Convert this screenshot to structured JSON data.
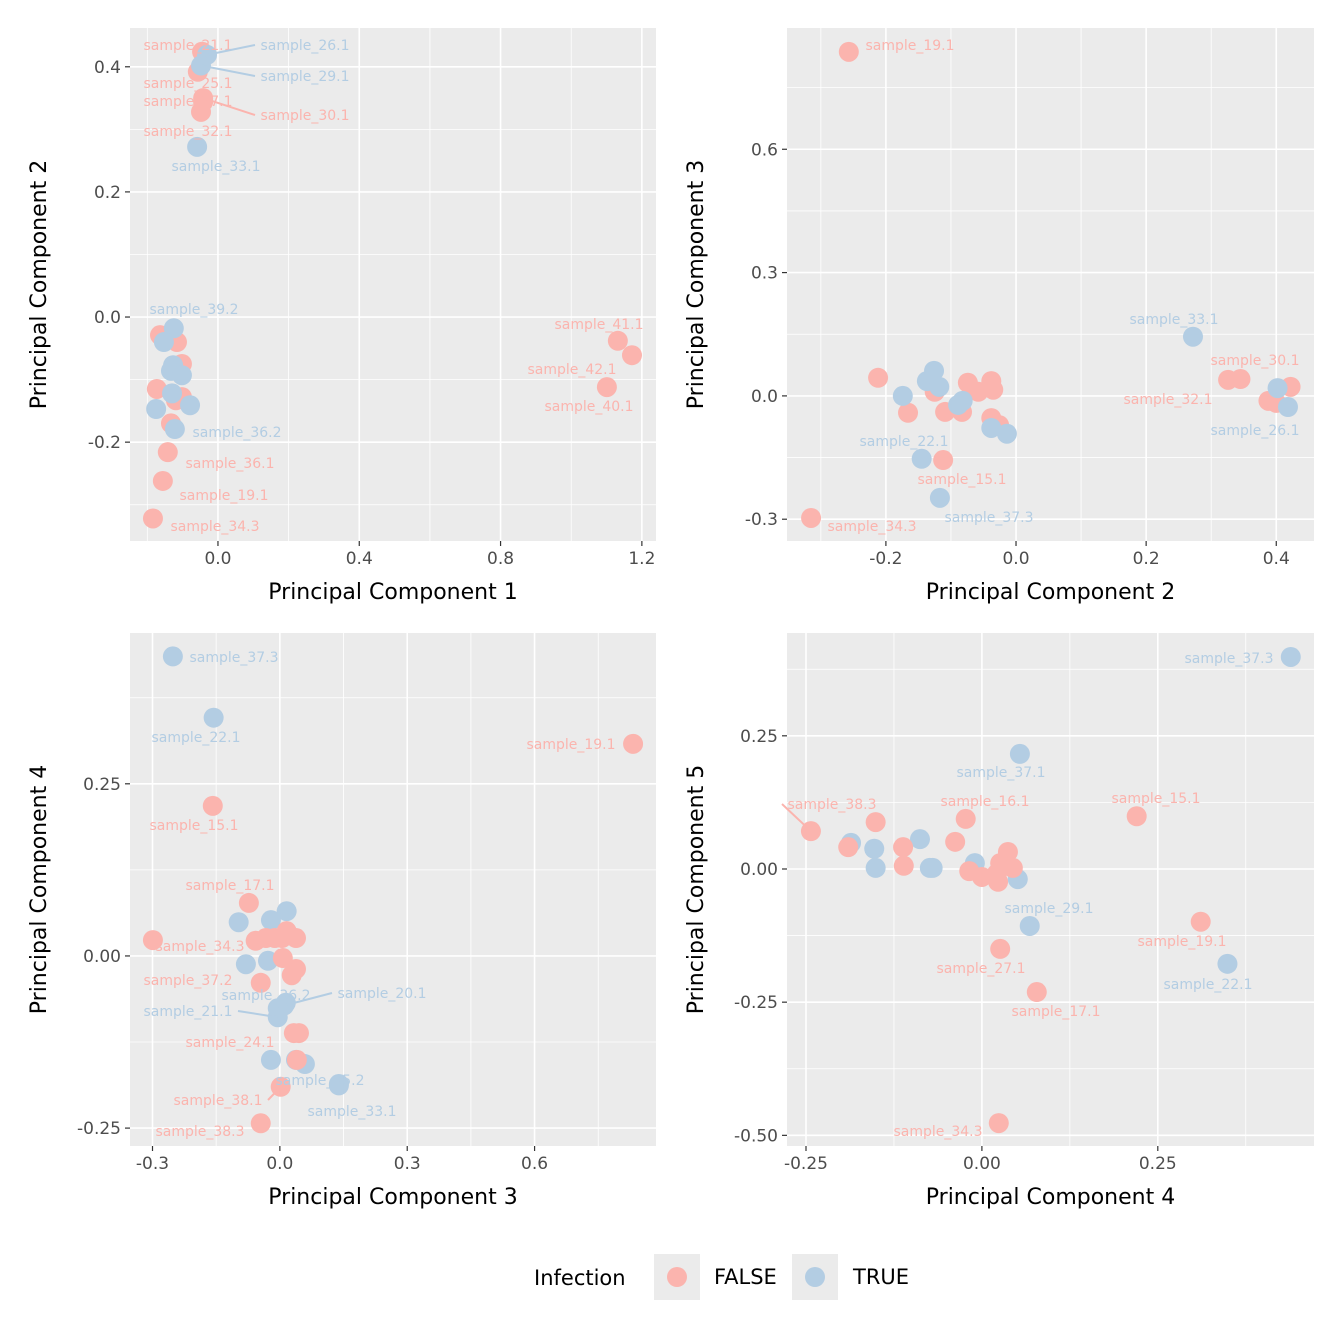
{
  "colors": {
    "FALSE": "#FBB4AE",
    "TRUE": "#B3CDE3"
  },
  "legend": {
    "title": "Infection",
    "items": [
      {
        "key": "FALSE",
        "label": "FALSE"
      },
      {
        "key": "TRUE",
        "label": "TRUE"
      }
    ]
  },
  "chart_data": [
    {
      "type": "scatter",
      "xlabel": "Principal Component 1",
      "ylabel": "Principal Component 2",
      "xlim": [
        -0.249,
        1.24
      ],
      "ylim": [
        -0.358,
        0.462
      ],
      "xticks": [
        0,
        0.4,
        0.8,
        1.2
      ],
      "xtick_labels": [
        "0.0",
        "0.4",
        "0.8",
        "1.2"
      ],
      "yticks": [
        -0.2,
        0,
        0.2,
        0.4
      ],
      "ytick_labels": [
        "-0.2",
        "0.0",
        "0.2",
        "0.4"
      ],
      "xminor": [
        -0.2,
        0.2,
        0.6,
        1.0
      ],
      "yminor": [
        -0.3,
        -0.1,
        0.1,
        0.3
      ],
      "points": [
        {
          "x": -0.045,
          "y": 0.424,
          "g": "FALSE",
          "label": "sample_21.1"
        },
        {
          "x": -0.057,
          "y": 0.392,
          "g": "FALSE",
          "label": "sample_25.1"
        },
        {
          "x": -0.042,
          "y": 0.344,
          "g": "FALSE",
          "label": "sample_27.1"
        },
        {
          "x": -0.042,
          "y": 0.35,
          "g": "FALSE",
          "label": "sample_30.1"
        },
        {
          "x": -0.048,
          "y": 0.328,
          "g": "FALSE",
          "label": "sample_32.1"
        },
        {
          "x": -0.164,
          "y": -0.029,
          "g": "FALSE"
        },
        {
          "x": -0.116,
          "y": -0.04,
          "g": "FALSE"
        },
        {
          "x": -0.102,
          "y": -0.075,
          "g": "FALSE"
        },
        {
          "x": -0.173,
          "y": -0.115,
          "g": "FALSE"
        },
        {
          "x": -0.102,
          "y": -0.128,
          "g": "FALSE"
        },
        {
          "x": -0.119,
          "y": -0.133,
          "g": "FALSE"
        },
        {
          "x": -0.133,
          "y": -0.17,
          "g": "FALSE"
        },
        {
          "x": -0.142,
          "y": -0.216,
          "g": "FALSE",
          "label": "sample_36.1"
        },
        {
          "x": -0.156,
          "y": -0.262,
          "g": "FALSE",
          "label": "sample_19.1"
        },
        {
          "x": -0.184,
          "y": -0.322,
          "g": "FALSE",
          "label": "sample_34.3"
        },
        {
          "x": 1.132,
          "y": -0.038,
          "g": "FALSE",
          "label": "sample_41.1"
        },
        {
          "x": 1.172,
          "y": -0.061,
          "g": "FALSE",
          "label": "sample_42.1"
        },
        {
          "x": 1.101,
          "y": -0.112,
          "g": "FALSE",
          "label": "sample_40.1"
        },
        {
          "x": -0.031,
          "y": 0.419,
          "g": "TRUE",
          "label": "sample_26.1"
        },
        {
          "x": -0.048,
          "y": 0.402,
          "g": "TRUE",
          "label": "sample_29.1"
        },
        {
          "x": -0.059,
          "y": 0.272,
          "g": "TRUE",
          "label": "sample_33.1"
        },
        {
          "x": -0.125,
          "y": -0.018,
          "g": "TRUE",
          "label": "sample_39.2"
        },
        {
          "x": -0.153,
          "y": -0.04,
          "g": "TRUE"
        },
        {
          "x": -0.127,
          "y": -0.077,
          "g": "TRUE"
        },
        {
          "x": -0.133,
          "y": -0.086,
          "g": "TRUE"
        },
        {
          "x": -0.102,
          "y": -0.093,
          "g": "TRUE"
        },
        {
          "x": -0.13,
          "y": -0.122,
          "g": "TRUE"
        },
        {
          "x": -0.079,
          "y": -0.141,
          "g": "TRUE"
        },
        {
          "x": -0.175,
          "y": -0.147,
          "g": "TRUE"
        },
        {
          "x": -0.122,
          "y": -0.179,
          "g": "TRUE",
          "label": "sample_36.2"
        }
      ]
    },
    {
      "type": "scatter",
      "xlabel": "Principal Component 2",
      "ylabel": "Principal Component 3",
      "xlim": [
        -0.352,
        0.458
      ],
      "ylim": [
        -0.353,
        0.895
      ],
      "xticks": [
        -0.2,
        0,
        0.2,
        0.4
      ],
      "xtick_labels": [
        "-0.2",
        "0.0",
        "0.2",
        "0.4"
      ],
      "yticks": [
        -0.3,
        0,
        0.3,
        0.6
      ],
      "ytick_labels": [
        "-0.3",
        "0.0",
        "0.3",
        "0.6"
      ],
      "xminor": [
        -0.3,
        -0.1,
        0.1,
        0.3
      ],
      "yminor": [
        -0.15,
        0.15,
        0.45,
        0.75
      ],
      "points": [
        {
          "x": -0.257,
          "y": 0.837,
          "g": "FALSE",
          "label": "sample_19.1"
        },
        {
          "x": -0.212,
          "y": 0.044,
          "g": "FALSE"
        },
        {
          "x": -0.166,
          "y": -0.041,
          "g": "FALSE"
        },
        {
          "x": -0.125,
          "y": 0.01,
          "g": "FALSE"
        },
        {
          "x": -0.109,
          "y": -0.039,
          "g": "FALSE"
        },
        {
          "x": -0.112,
          "y": -0.156,
          "g": "FALSE",
          "label": "sample_15.1"
        },
        {
          "x": -0.074,
          "y": 0.032,
          "g": "FALSE"
        },
        {
          "x": -0.083,
          "y": -0.039,
          "g": "FALSE"
        },
        {
          "x": -0.058,
          "y": 0.01,
          "g": "FALSE"
        },
        {
          "x": -0.038,
          "y": 0.036,
          "g": "FALSE"
        },
        {
          "x": -0.035,
          "y": 0.015,
          "g": "FALSE"
        },
        {
          "x": -0.038,
          "y": -0.054,
          "g": "FALSE"
        },
        {
          "x": -0.026,
          "y": -0.071,
          "g": "FALSE"
        },
        {
          "x": -0.315,
          "y": -0.297,
          "g": "FALSE",
          "label": "sample_34.3"
        },
        {
          "x": 0.326,
          "y": 0.039,
          "g": "FALSE",
          "label": "sample_32.1"
        },
        {
          "x": 0.345,
          "y": 0.041,
          "g": "FALSE",
          "label": "sample_30.1"
        },
        {
          "x": 0.388,
          "y": -0.012,
          "g": "FALSE"
        },
        {
          "x": 0.422,
          "y": 0.022,
          "g": "FALSE"
        },
        {
          "x": 0.4,
          "y": -0.017,
          "g": "FALSE"
        },
        {
          "x": -0.174,
          "y": 0.0,
          "g": "TRUE"
        },
        {
          "x": -0.137,
          "y": 0.036,
          "g": "TRUE"
        },
        {
          "x": -0.126,
          "y": 0.061,
          "g": "TRUE"
        },
        {
          "x": -0.118,
          "y": 0.022,
          "g": "TRUE"
        },
        {
          "x": -0.145,
          "y": -0.153,
          "g": "TRUE",
          "label": "sample_22.1"
        },
        {
          "x": -0.117,
          "y": -0.248,
          "g": "TRUE",
          "label": "sample_37.3"
        },
        {
          "x": -0.089,
          "y": -0.022,
          "g": "TRUE"
        },
        {
          "x": -0.082,
          "y": -0.012,
          "g": "TRUE"
        },
        {
          "x": -0.038,
          "y": -0.078,
          "g": "TRUE"
        },
        {
          "x": -0.014,
          "y": -0.092,
          "g": "TRUE"
        },
        {
          "x": 0.272,
          "y": 0.144,
          "g": "TRUE",
          "label": "sample_33.1"
        },
        {
          "x": 0.402,
          "y": 0.019,
          "g": "TRUE"
        },
        {
          "x": 0.418,
          "y": -0.027,
          "g": "TRUE",
          "label": "sample_26.1"
        }
      ]
    },
    {
      "type": "scatter",
      "xlabel": "Principal Component 3",
      "ylabel": "Principal Component 4",
      "xlim": [
        -0.353,
        0.886
      ],
      "ylim": [
        -0.276,
        0.469
      ],
      "xticks": [
        -0.3,
        0,
        0.3,
        0.6
      ],
      "xtick_labels": [
        "-0.3",
        "0.0",
        "0.3",
        "0.6"
      ],
      "yticks": [
        -0.25,
        0,
        0.25
      ],
      "ytick_labels": [
        "-0.25",
        "0.00",
        "0.25"
      ],
      "xminor": [
        -0.15,
        0.15,
        0.45,
        0.75
      ],
      "yminor": [
        -0.125,
        0.125,
        0.375
      ],
      "points": [
        {
          "x": -0.252,
          "y": 0.435,
          "g": "TRUE",
          "label": "sample_37.3"
        },
        {
          "x": -0.156,
          "y": 0.346,
          "g": "TRUE",
          "label": "sample_22.1"
        },
        {
          "x": -0.097,
          "y": 0.049,
          "g": "TRUE"
        },
        {
          "x": -0.021,
          "y": 0.052,
          "g": "TRUE"
        },
        {
          "x": 0.016,
          "y": 0.065,
          "g": "TRUE"
        },
        {
          "x": -0.08,
          "y": -0.012,
          "g": "TRUE"
        },
        {
          "x": -0.028,
          "y": -0.007,
          "g": "TRUE"
        },
        {
          "x": 0.014,
          "y": -0.068,
          "g": "TRUE",
          "label": "sample_36.2"
        },
        {
          "x": 0.01,
          "y": -0.072,
          "g": "TRUE",
          "label": "sample_20.1"
        },
        {
          "x": -0.005,
          "y": -0.076,
          "g": "TRUE"
        },
        {
          "x": -0.005,
          "y": -0.089,
          "g": "TRUE",
          "label": "sample_21.1"
        },
        {
          "x": -0.021,
          "y": -0.151,
          "g": "TRUE"
        },
        {
          "x": 0.038,
          "y": -0.151,
          "g": "TRUE"
        },
        {
          "x": 0.059,
          "y": -0.157,
          "g": "TRUE"
        },
        {
          "x": 0.139,
          "y": -0.186,
          "g": "TRUE",
          "label": "sample_35.2"
        },
        {
          "x": 0.139,
          "y": -0.188,
          "g": "TRUE",
          "label": "sample_33.1"
        },
        {
          "x": 0.832,
          "y": 0.308,
          "g": "FALSE",
          "label": "sample_19.1"
        },
        {
          "x": -0.158,
          "y": 0.218,
          "g": "FALSE",
          "label": "sample_15.1"
        },
        {
          "x": -0.073,
          "y": 0.077,
          "g": "FALSE",
          "label": "sample_17.1"
        },
        {
          "x": -0.299,
          "y": 0.023,
          "g": "FALSE",
          "label": "sample_34.3"
        },
        {
          "x": -0.057,
          "y": 0.022,
          "g": "FALSE"
        },
        {
          "x": -0.033,
          "y": 0.026,
          "g": "FALSE"
        },
        {
          "x": -0.012,
          "y": 0.026,
          "g": "FALSE"
        },
        {
          "x": 0.016,
          "y": 0.036,
          "g": "FALSE"
        },
        {
          "x": 0.038,
          "y": 0.026,
          "g": "FALSE"
        },
        {
          "x": 0.005,
          "y": 0.026,
          "g": "FALSE"
        },
        {
          "x": 0.007,
          "y": -0.003,
          "g": "FALSE"
        },
        {
          "x": 0.038,
          "y": -0.019,
          "g": "FALSE"
        },
        {
          "x": 0.028,
          "y": -0.028,
          "g": "FALSE"
        },
        {
          "x": -0.045,
          "y": -0.039,
          "g": "FALSE",
          "label": "sample_37.2"
        },
        {
          "x": 0.033,
          "y": -0.112,
          "g": "FALSE",
          "label": "sample_24.1"
        },
        {
          "x": 0.045,
          "y": -0.112,
          "g": "FALSE"
        },
        {
          "x": 0.04,
          "y": -0.151,
          "g": "FALSE"
        },
        {
          "x": 0.002,
          "y": -0.19,
          "g": "FALSE",
          "label": "sample_38.1"
        },
        {
          "x": -0.045,
          "y": -0.243,
          "g": "FALSE",
          "label": "sample_38.3"
        }
      ]
    },
    {
      "type": "scatter",
      "xlabel": "Principal Component 4",
      "ylabel": "Principal Component 5",
      "xlim": [
        -0.277,
        0.472
      ],
      "ylim": [
        -0.52,
        0.443
      ],
      "xticks": [
        -0.25,
        0,
        0.25
      ],
      "xtick_labels": [
        "-0.25",
        "0.00",
        "0.25"
      ],
      "yticks": [
        -0.5,
        -0.25,
        0,
        0.25
      ],
      "ytick_labels": [
        "-0.50",
        "-0.25",
        "0.00",
        "0.25"
      ],
      "xminor": [
        -0.125,
        0.125,
        0.375
      ],
      "yminor": [
        -0.375,
        -0.125,
        0.125,
        0.375
      ],
      "points": [
        {
          "x": 0.439,
          "y": 0.398,
          "g": "TRUE",
          "label": "sample_37.3"
        },
        {
          "x": 0.054,
          "y": 0.216,
          "g": "TRUE",
          "label": "sample_37.1"
        },
        {
          "x": -0.186,
          "y": 0.049,
          "g": "TRUE"
        },
        {
          "x": -0.153,
          "y": 0.038,
          "g": "TRUE"
        },
        {
          "x": -0.151,
          "y": 0.002,
          "g": "TRUE"
        },
        {
          "x": -0.088,
          "y": 0.056,
          "g": "TRUE"
        },
        {
          "x": -0.074,
          "y": 0.002,
          "g": "TRUE"
        },
        {
          "x": -0.07,
          "y": 0.002,
          "g": "TRUE"
        },
        {
          "x": -0.01,
          "y": 0.011,
          "g": "TRUE"
        },
        {
          "x": 0.051,
          "y": -0.019,
          "g": "TRUE"
        },
        {
          "x": 0.068,
          "y": -0.107,
          "g": "TRUE",
          "label": "sample_29.1"
        },
        {
          "x": 0.349,
          "y": -0.178,
          "g": "TRUE",
          "label": "sample_22.1"
        },
        {
          "x": -0.243,
          "y": 0.071,
          "g": "FALSE",
          "label": "sample_38.3"
        },
        {
          "x": -0.19,
          "y": 0.041,
          "g": "FALSE"
        },
        {
          "x": -0.151,
          "y": 0.088,
          "g": "FALSE"
        },
        {
          "x": -0.112,
          "y": 0.041,
          "g": "FALSE"
        },
        {
          "x": -0.111,
          "y": 0.006,
          "g": "FALSE"
        },
        {
          "x": -0.038,
          "y": 0.051,
          "g": "FALSE"
        },
        {
          "x": -0.023,
          "y": 0.094,
          "g": "FALSE",
          "label": "sample_16.1"
        },
        {
          "x": -0.018,
          "y": -0.004,
          "g": "FALSE"
        },
        {
          "x": 0.0,
          "y": -0.015,
          "g": "FALSE"
        },
        {
          "x": 0.023,
          "y": -0.024,
          "g": "FALSE"
        },
        {
          "x": 0.026,
          "y": 0.011,
          "g": "FALSE"
        },
        {
          "x": 0.037,
          "y": 0.032,
          "g": "FALSE"
        },
        {
          "x": 0.044,
          "y": 0.002,
          "g": "FALSE"
        },
        {
          "x": 0.021,
          "y": -0.009,
          "g": "FALSE"
        },
        {
          "x": 0.22,
          "y": 0.099,
          "g": "FALSE",
          "label": "sample_15.1"
        },
        {
          "x": 0.311,
          "y": -0.099,
          "g": "FALSE",
          "label": "sample_19.1"
        },
        {
          "x": 0.026,
          "y": -0.15,
          "g": "FALSE",
          "label": "sample_27.1"
        },
        {
          "x": 0.078,
          "y": -0.231,
          "g": "FALSE",
          "label": "sample_17.1"
        },
        {
          "x": 0.024,
          "y": -0.477,
          "g": "FALSE",
          "label": "sample_34.3"
        }
      ]
    }
  ]
}
